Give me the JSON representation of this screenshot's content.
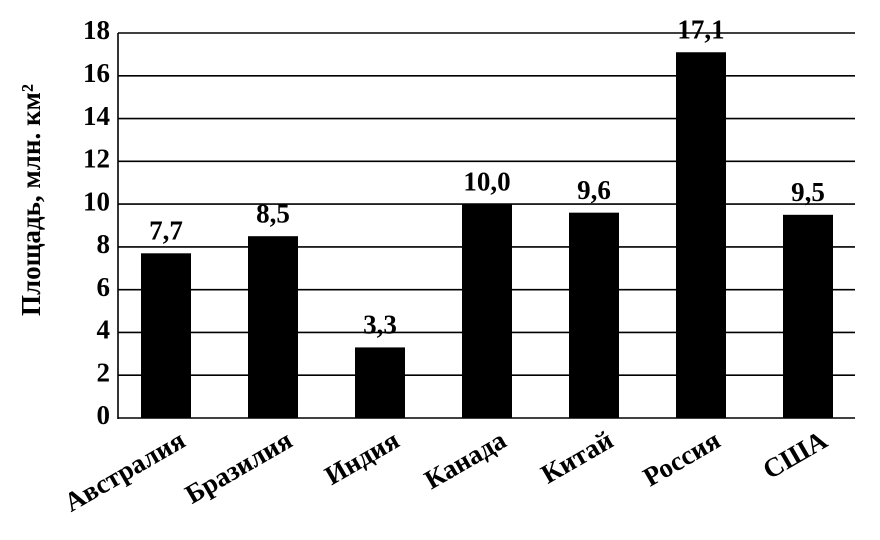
{
  "chart_data": {
    "type": "bar",
    "y_label": "Площадь, млн. км²",
    "categories": [
      "Австралия",
      "Бразилия",
      "Индия",
      "Канада",
      "Китай",
      "Россия",
      "США"
    ],
    "values": [
      7.7,
      8.5,
      3.3,
      10.0,
      9.6,
      17.1,
      9.5
    ],
    "value_labels": [
      "7,7",
      "8,5",
      "3,3",
      "10,0",
      "9,6",
      "17,1",
      "9,5"
    ],
    "color": "#000000",
    "ylim": [
      0,
      18
    ],
    "yticks": [
      0,
      2,
      4,
      6,
      8,
      10,
      12,
      14,
      16,
      18
    ],
    "grid": true
  }
}
